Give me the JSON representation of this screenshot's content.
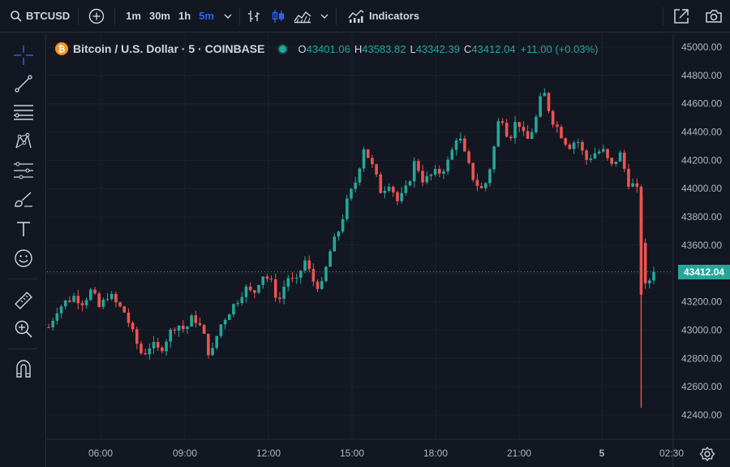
{
  "toolbar": {
    "symbol": "BTCUSD",
    "intervals": [
      "1m",
      "30m",
      "1h",
      "5m"
    ],
    "active_interval": "5m",
    "indicators_label": "Indicators"
  },
  "legend": {
    "title": "Bitcoin / U.S. Dollar · 5 · COINBASE",
    "open_key": "O",
    "open": "43401.06",
    "high_key": "H",
    "high": "43583.82",
    "low_key": "L",
    "low": "43342.39",
    "close_key": "C",
    "close": "43412.04",
    "change": "+11.00 (+0.03%)"
  },
  "colors": {
    "up": "#26a69a",
    "down": "#ef5350",
    "accent": "#2962ff",
    "background": "#131722"
  },
  "chart_data": {
    "type": "candlestick",
    "y_ticks": [
      "45000.00",
      "44800.00",
      "44600.00",
      "44400.00",
      "44200.00",
      "44000.00",
      "43800.00",
      "43600.00",
      "43400.00",
      "43200.00",
      "43000.00",
      "42800.00",
      "42600.00",
      "42400.00"
    ],
    "x_ticks": [
      "06:00",
      "09:00",
      "12:00",
      "15:00",
      "18:00",
      "21:00",
      "5",
      "02:30"
    ],
    "ylim": [
      42300,
      45050
    ],
    "last_price": "43412.04",
    "last_price_value": 43412.04,
    "series_close_path": [
      [
        0,
        43020
      ],
      [
        4,
        43150
      ],
      [
        8,
        43200
      ],
      [
        12,
        43240
      ],
      [
        16,
        43200
      ],
      [
        20,
        43280
      ],
      [
        24,
        43150
      ],
      [
        28,
        43260
      ],
      [
        32,
        43180
      ],
      [
        36,
        43120
      ],
      [
        40,
        42950
      ],
      [
        44,
        42820
      ],
      [
        48,
        42900
      ],
      [
        52,
        42850
      ],
      [
        56,
        42960
      ],
      [
        60,
        43050
      ],
      [
        64,
        43000
      ],
      [
        68,
        43100
      ],
      [
        72,
        43000
      ],
      [
        76,
        42800
      ],
      [
        80,
        43020
      ],
      [
        84,
        43120
      ],
      [
        88,
        43200
      ],
      [
        92,
        43300
      ],
      [
        96,
        43250
      ],
      [
        100,
        43400
      ],
      [
        104,
        43350
      ],
      [
        108,
        43200
      ],
      [
        112,
        43380
      ],
      [
        116,
        43320
      ],
      [
        120,
        43500
      ],
      [
        124,
        43350
      ],
      [
        128,
        43300
      ],
      [
        132,
        43550
      ],
      [
        136,
        43700
      ],
      [
        140,
        43900
      ],
      [
        144,
        44050
      ],
      [
        148,
        44300
      ],
      [
        152,
        44150
      ],
      [
        156,
        43980
      ],
      [
        160,
        44050
      ],
      [
        164,
        43900
      ],
      [
        168,
        44000
      ],
      [
        172,
        44200
      ],
      [
        176,
        44050
      ],
      [
        180,
        44100
      ],
      [
        184,
        44120
      ],
      [
        188,
        44200
      ],
      [
        192,
        44400
      ],
      [
        196,
        44200
      ],
      [
        200,
        44050
      ],
      [
        204,
        43980
      ],
      [
        208,
        44200
      ],
      [
        212,
        44550
      ],
      [
        216,
        44350
      ],
      [
        220,
        44500
      ],
      [
        224,
        44320
      ],
      [
        228,
        44450
      ],
      [
        232,
        44700
      ],
      [
        236,
        44500
      ],
      [
        240,
        44400
      ],
      [
        244,
        44300
      ],
      [
        248,
        44350
      ],
      [
        252,
        44200
      ],
      [
        256,
        44250
      ],
      [
        260,
        44270
      ],
      [
        264,
        44150
      ],
      [
        268,
        44250
      ],
      [
        272,
        44050
      ],
      [
        276,
        44000
      ],
      [
        280,
        43300
      ],
      [
        284,
        43412
      ]
    ],
    "wick_low": 42450,
    "wick_high": 44800
  }
}
